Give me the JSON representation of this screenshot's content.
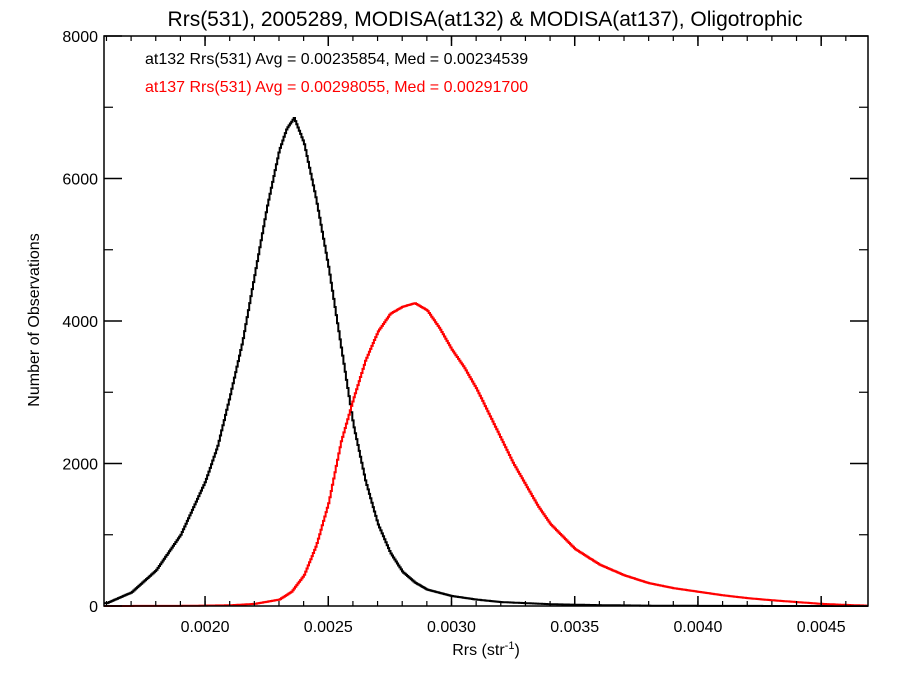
{
  "chart_data": {
    "type": "line",
    "step": true,
    "title": "Rrs(531), 2005289, MODISA(at132) & MODISA(at137), Oligotrophic",
    "xlabel_main": "Rrs (str",
    "xlabel_sup": "-1",
    "xlabel_end": ")",
    "ylabel": "Number of Observations",
    "xlim": [
      0.00159,
      0.00469
    ],
    "ylim": [
      0,
      8000
    ],
    "xticks": [
      0.002,
      0.0025,
      0.003,
      0.0035,
      0.004,
      0.0045
    ],
    "xtick_labels": [
      "0.0020",
      "0.0025",
      "0.0030",
      "0.0035",
      "0.0040",
      "0.0045"
    ],
    "yticks": [
      0,
      2000,
      4000,
      6000,
      8000
    ],
    "ytick_labels": [
      "0",
      "2000",
      "4000",
      "6000",
      "8000"
    ],
    "grid": false,
    "annotations": [
      {
        "text": "at132 Rrs(531) Avg = 0.00235854, Med = 0.00234539",
        "color": "#000000"
      },
      {
        "text": "at137 Rrs(531) Avg = 0.00298055, Med = 0.00291700",
        "color": "#ff0000"
      }
    ],
    "series": [
      {
        "color": "#000000",
        "x": [
          0.0016,
          0.0017,
          0.0018,
          0.0019,
          0.002,
          0.00205,
          0.0021,
          0.00215,
          0.0022,
          0.00225,
          0.0023,
          0.00233,
          0.00236,
          0.0024,
          0.00245,
          0.0025,
          0.00255,
          0.0026,
          0.00265,
          0.0027,
          0.00275,
          0.0028,
          0.00285,
          0.0029,
          0.003,
          0.0031,
          0.0032,
          0.0034,
          0.0036,
          0.0038,
          0.004,
          0.0042,
          0.0044,
          0.00469
        ],
        "y": [
          40,
          190,
          500,
          1000,
          1750,
          2250,
          2950,
          3700,
          4650,
          5600,
          6400,
          6700,
          6850,
          6500,
          5700,
          4750,
          3650,
          2550,
          1750,
          1150,
          750,
          480,
          330,
          230,
          140,
          90,
          55,
          25,
          12,
          5,
          2,
          1,
          0,
          0
        ]
      },
      {
        "color": "#ff0000",
        "x": [
          0.0016,
          0.0019,
          0.0021,
          0.0022,
          0.0023,
          0.00235,
          0.0024,
          0.00245,
          0.0025,
          0.00255,
          0.0026,
          0.00265,
          0.0027,
          0.00275,
          0.0028,
          0.00285,
          0.0029,
          0.00295,
          0.003,
          0.00305,
          0.0031,
          0.00315,
          0.0032,
          0.00325,
          0.0033,
          0.00335,
          0.0034,
          0.0035,
          0.0036,
          0.0037,
          0.0038,
          0.0039,
          0.004,
          0.0041,
          0.0042,
          0.0043,
          0.0044,
          0.0045,
          0.0046,
          0.00469
        ],
        "y": [
          0,
          2,
          10,
          30,
          90,
          200,
          430,
          850,
          1450,
          2300,
          2900,
          3450,
          3850,
          4100,
          4200,
          4250,
          4150,
          3900,
          3600,
          3350,
          3050,
          2700,
          2350,
          2000,
          1700,
          1400,
          1150,
          800,
          580,
          430,
          320,
          250,
          200,
          150,
          110,
          80,
          55,
          30,
          15,
          5
        ]
      }
    ]
  }
}
